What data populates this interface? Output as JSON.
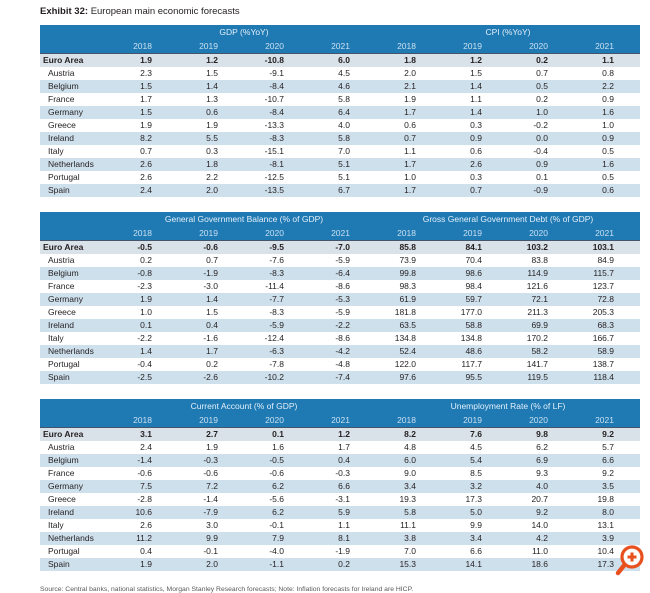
{
  "title": {
    "label": "Exhibit 32:",
    "text": "European main economic forecasts"
  },
  "colors": {
    "header-blue": "#1f79b3",
    "year-text": "#c9e0f1",
    "group-text": "#e3f0fa",
    "stripe-blue": "#cfe0ed",
    "euro-bg": "#d9e1e9",
    "euro-border": "#44546a",
    "text-dark": "#231f20",
    "source-gray": "#58595b",
    "accent-orange": "#e8501e"
  },
  "icons": {
    "zoom_in": "magnifier-plus-icon"
  },
  "tables": [
    {
      "name": "gdp-cpi-table",
      "left_header": "GDP (%YoY)",
      "right_header": "CPI (%YoY)",
      "years": [
        "2018",
        "2019",
        "2020",
        "2021",
        "2018",
        "2019",
        "2020",
        "2021"
      ],
      "rows": [
        {
          "label": "Euro Area",
          "bold": true,
          "values": [
            "1.9",
            "1.2",
            "-10.8",
            "6.0",
            "1.8",
            "1.2",
            "0.2",
            "1.1"
          ]
        },
        {
          "label": "Austria",
          "bold": false,
          "values": [
            "2.3",
            "1.5",
            "-9.1",
            "4.5",
            "2.0",
            "1.5",
            "0.7",
            "0.8"
          ]
        },
        {
          "label": "Belgium",
          "bold": false,
          "values": [
            "1.5",
            "1.4",
            "-8.4",
            "4.6",
            "2.1",
            "1.4",
            "0.5",
            "2.2"
          ]
        },
        {
          "label": "France",
          "bold": false,
          "values": [
            "1.7",
            "1.3",
            "-10.7",
            "5.8",
            "1.9",
            "1.1",
            "0.2",
            "0.9"
          ]
        },
        {
          "label": "Germany",
          "bold": false,
          "values": [
            "1.5",
            "0.6",
            "-8.4",
            "6.4",
            "1.7",
            "1.4",
            "1.0",
            "1.6"
          ]
        },
        {
          "label": "Greece",
          "bold": false,
          "values": [
            "1.9",
            "1.9",
            "-13.3",
            "4.0",
            "0.6",
            "0.3",
            "-0.2",
            "1.0"
          ]
        },
        {
          "label": "Ireland",
          "bold": false,
          "values": [
            "8.2",
            "5.5",
            "-8.3",
            "5.8",
            "0.7",
            "0.9",
            "0.0",
            "0.9"
          ]
        },
        {
          "label": "Italy",
          "bold": false,
          "values": [
            "0.7",
            "0.3",
            "-15.1",
            "7.0",
            "1.1",
            "0.6",
            "-0.4",
            "0.5"
          ]
        },
        {
          "label": "Netherlands",
          "bold": false,
          "values": [
            "2.6",
            "1.8",
            "-8.1",
            "5.1",
            "1.7",
            "2.6",
            "0.9",
            "1.6"
          ]
        },
        {
          "label": "Portugal",
          "bold": false,
          "values": [
            "2.6",
            "2.2",
            "-12.5",
            "5.1",
            "1.0",
            "0.3",
            "0.1",
            "0.5"
          ]
        },
        {
          "label": "Spain",
          "bold": false,
          "values": [
            "2.4",
            "2.0",
            "-13.5",
            "6.7",
            "1.7",
            "0.7",
            "-0.9",
            "0.6"
          ]
        }
      ]
    },
    {
      "name": "government-balance-debt-table",
      "left_header": "General Government Balance (% of GDP)",
      "right_header": "Gross General Government Debt (% of GDP)",
      "years": [
        "2018",
        "2019",
        "2020",
        "2021",
        "2018",
        "2019",
        "2020",
        "2021"
      ],
      "rows": [
        {
          "label": "Euro Area",
          "bold": true,
          "values": [
            "-0.5",
            "-0.6",
            "-9.5",
            "-7.0",
            "85.8",
            "84.1",
            "103.2",
            "103.1"
          ]
        },
        {
          "label": "Austria",
          "bold": false,
          "values": [
            "0.2",
            "0.7",
            "-7.6",
            "-5.9",
            "73.9",
            "70.4",
            "83.8",
            "84.9"
          ]
        },
        {
          "label": "Belgium",
          "bold": false,
          "values": [
            "-0.8",
            "-1.9",
            "-8.3",
            "-6.4",
            "99.8",
            "98.6",
            "114.9",
            "115.7"
          ]
        },
        {
          "label": "France",
          "bold": false,
          "values": [
            "-2.3",
            "-3.0",
            "-11.4",
            "-8.6",
            "98.3",
            "98.4",
            "121.6",
            "123.7"
          ]
        },
        {
          "label": "Germany",
          "bold": false,
          "values": [
            "1.9",
            "1.4",
            "-7.7",
            "-5.3",
            "61.9",
            "59.7",
            "72.1",
            "72.8"
          ]
        },
        {
          "label": "Greece",
          "bold": false,
          "values": [
            "1.0",
            "1.5",
            "-8.3",
            "-5.9",
            "181.8",
            "177.0",
            "211.3",
            "205.3"
          ]
        },
        {
          "label": "Ireland",
          "bold": false,
          "values": [
            "0.1",
            "0.4",
            "-5.9",
            "-2.2",
            "63.5",
            "58.8",
            "69.9",
            "68.3"
          ]
        },
        {
          "label": "Italy",
          "bold": false,
          "values": [
            "-2.2",
            "-1.6",
            "-12.4",
            "-8.6",
            "134.8",
            "134.8",
            "170.2",
            "166.7"
          ]
        },
        {
          "label": "Netherlands",
          "bold": false,
          "values": [
            "1.4",
            "1.7",
            "-6.3",
            "-4.2",
            "52.4",
            "48.6",
            "58.2",
            "58.9"
          ]
        },
        {
          "label": "Portugal",
          "bold": false,
          "values": [
            "-0.4",
            "0.2",
            "-7.8",
            "-4.8",
            "122.0",
            "117.7",
            "141.7",
            "138.7"
          ]
        },
        {
          "label": "Spain",
          "bold": false,
          "values": [
            "-2.5",
            "-2.6",
            "-10.2",
            "-7.4",
            "97.6",
            "95.5",
            "119.5",
            "118.4"
          ]
        }
      ]
    },
    {
      "name": "current-account-unemployment-table",
      "left_header": "Current Account (% of GDP)",
      "right_header": "Unemployment Rate (% of LF)",
      "years": [
        "2018",
        "2019",
        "2020",
        "2021",
        "2018",
        "2019",
        "2020",
        "2021"
      ],
      "rows": [
        {
          "label": "Euro Area",
          "bold": true,
          "values": [
            "3.1",
            "2.7",
            "0.1",
            "1.2",
            "8.2",
            "7.6",
            "9.8",
            "9.2"
          ]
        },
        {
          "label": "Austria",
          "bold": false,
          "values": [
            "2.4",
            "1.9",
            "1.6",
            "1.7",
            "4.8",
            "4.5",
            "6.2",
            "5.7"
          ]
        },
        {
          "label": "Belgium",
          "bold": false,
          "values": [
            "-1.4",
            "-0.3",
            "-0.5",
            "0.4",
            "6.0",
            "5.4",
            "6.9",
            "6.6"
          ]
        },
        {
          "label": "France",
          "bold": false,
          "values": [
            "-0.6",
            "-0.6",
            "-0.6",
            "-0.3",
            "9.0",
            "8.5",
            "9.3",
            "9.2"
          ]
        },
        {
          "label": "Germany",
          "bold": false,
          "values": [
            "7.5",
            "7.2",
            "6.2",
            "6.6",
            "3.4",
            "3.2",
            "4.0",
            "3.5"
          ]
        },
        {
          "label": "Greece",
          "bold": false,
          "values": [
            "-2.8",
            "-1.4",
            "-5.6",
            "-3.1",
            "19.3",
            "17.3",
            "20.7",
            "19.8"
          ]
        },
        {
          "label": "Ireland",
          "bold": false,
          "values": [
            "10.6",
            "-7.9",
            "6.2",
            "5.9",
            "5.8",
            "5.0",
            "9.2",
            "8.0"
          ]
        },
        {
          "label": "Italy",
          "bold": false,
          "values": [
            "2.6",
            "3.0",
            "-0.1",
            "1.1",
            "11.1",
            "9.9",
            "14.0",
            "13.1"
          ]
        },
        {
          "label": "Netherlands",
          "bold": false,
          "values": [
            "11.2",
            "9.9",
            "7.9",
            "8.1",
            "3.8",
            "3.4",
            "4.2",
            "3.9"
          ]
        },
        {
          "label": "Portugal",
          "bold": false,
          "values": [
            "0.4",
            "-0.1",
            "-4.0",
            "-1.9",
            "7.0",
            "6.6",
            "11.0",
            "10.4"
          ]
        },
        {
          "label": "Spain",
          "bold": false,
          "values": [
            "1.9",
            "2.0",
            "-1.1",
            "0.2",
            "15.3",
            "14.1",
            "18.6",
            "17.3"
          ]
        }
      ]
    }
  ],
  "footer": {
    "source": "Source: Central banks, national statistics, Morgan Stanley Research forecasts; Note: Inflation forecasts for Ireland are HICP."
  }
}
